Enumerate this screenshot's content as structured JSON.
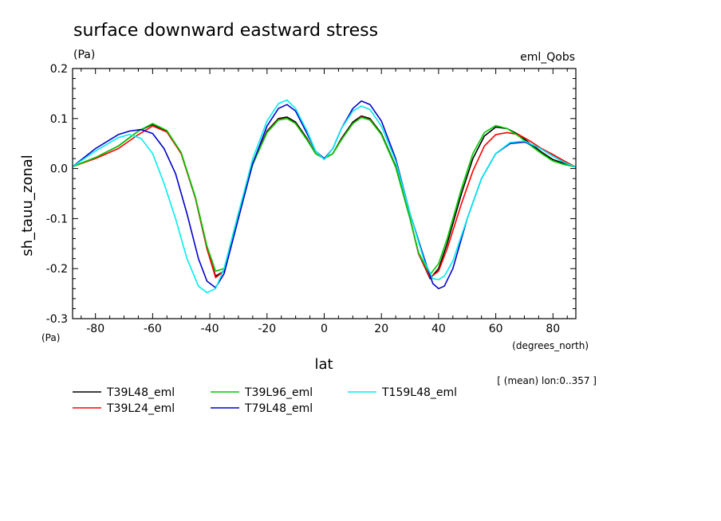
{
  "title": "surface downward eastward stress",
  "units_label": "(Pa)",
  "experiment": "eml_Qobs",
  "info": "[ (mean) lon:0..357 ]",
  "chart_data": {
    "type": "line",
    "xlabel": "lat",
    "ylabel": "sh_tauu_zonal",
    "x_units": "(degrees_north)",
    "y_units": "(Pa)",
    "xlim": [
      -88,
      88
    ],
    "ylim": [
      -0.3,
      0.2
    ],
    "xticks": [
      -80,
      -60,
      -40,
      -20,
      0,
      20,
      40,
      60,
      80
    ],
    "yticks": [
      -0.3,
      -0.2,
      -0.1,
      0.0,
      0.1,
      0.2
    ],
    "xtick_labels": [
      "-80",
      "-60",
      "-40",
      "-20",
      "0",
      "20",
      "40",
      "60",
      "80"
    ],
    "ytick_labels": [
      "-0.3",
      "-0.2",
      "-0.1",
      "0.0",
      "0.1",
      "0.2"
    ],
    "series": [
      {
        "name": "T39L48_eml",
        "color": "#000000",
        "x": [
          -88,
          -80,
          -72,
          -65,
          -60,
          -55,
          -50,
          -45,
          -41,
          -38,
          -35,
          -30,
          -25,
          -20,
          -16,
          -13,
          -10,
          -6,
          -3,
          0,
          3,
          6,
          10,
          13,
          16,
          20,
          25,
          30,
          33,
          37,
          40,
          43,
          48,
          52,
          56,
          60,
          64,
          68,
          72,
          76,
          80,
          84,
          88
        ],
        "y": [
          0.004,
          0.022,
          0.045,
          0.075,
          0.088,
          0.075,
          0.03,
          -0.06,
          -0.16,
          -0.215,
          -0.205,
          -0.09,
          0.01,
          0.075,
          0.1,
          0.103,
          0.093,
          0.06,
          0.03,
          0.02,
          0.03,
          0.06,
          0.093,
          0.105,
          0.1,
          0.07,
          0.005,
          -0.1,
          -0.17,
          -0.22,
          -0.2,
          -0.15,
          -0.05,
          0.02,
          0.065,
          0.083,
          0.08,
          0.068,
          0.05,
          0.033,
          0.018,
          0.01,
          0.003
        ]
      },
      {
        "name": "T39L24_eml",
        "color": "#ff0000",
        "x": [
          -88,
          -80,
          -72,
          -65,
          -60,
          -55,
          -50,
          -45,
          -41,
          -38,
          -35,
          -30,
          -25,
          -20,
          -16,
          -13,
          -10,
          -6,
          -3,
          0,
          3,
          6,
          10,
          13,
          16,
          20,
          25,
          30,
          33,
          37,
          40,
          43,
          48,
          52,
          56,
          60,
          64,
          68,
          72,
          76,
          80,
          84,
          88
        ],
        "y": [
          0.004,
          0.02,
          0.04,
          0.068,
          0.085,
          0.073,
          0.03,
          -0.06,
          -0.16,
          -0.218,
          -0.205,
          -0.09,
          0.01,
          0.073,
          0.098,
          0.1,
          0.09,
          0.058,
          0.03,
          0.02,
          0.03,
          0.058,
          0.09,
          0.103,
          0.098,
          0.068,
          0.003,
          -0.1,
          -0.17,
          -0.218,
          -0.205,
          -0.16,
          -0.07,
          -0.005,
          0.045,
          0.068,
          0.072,
          0.068,
          0.055,
          0.04,
          0.028,
          0.015,
          0.003
        ]
      },
      {
        "name": "T39L96_eml",
        "color": "#00cc00",
        "x": [
          -88,
          -80,
          -72,
          -65,
          -60,
          -55,
          -50,
          -45,
          -41,
          -38,
          -35,
          -30,
          -25,
          -20,
          -16,
          -13,
          -10,
          -6,
          -3,
          0,
          3,
          6,
          10,
          13,
          16,
          20,
          25,
          30,
          33,
          37,
          40,
          43,
          48,
          52,
          56,
          60,
          64,
          68,
          72,
          76,
          80,
          84,
          88
        ],
        "y": [
          0.004,
          0.022,
          0.045,
          0.075,
          0.09,
          0.076,
          0.032,
          -0.058,
          -0.155,
          -0.205,
          -0.2,
          -0.09,
          0.008,
          0.072,
          0.097,
          0.1,
          0.09,
          0.057,
          0.03,
          0.02,
          0.03,
          0.057,
          0.09,
          0.102,
          0.097,
          0.068,
          0.003,
          -0.1,
          -0.168,
          -0.212,
          -0.19,
          -0.14,
          -0.04,
          0.03,
          0.072,
          0.086,
          0.08,
          0.065,
          0.047,
          0.03,
          0.015,
          0.008,
          0.003
        ]
      },
      {
        "name": "T79L48_eml",
        "color": "#0000cc",
        "x": [
          -88,
          -80,
          -72,
          -68,
          -64,
          -60,
          -56,
          -52,
          -48,
          -44,
          -41,
          -38,
          -35,
          -30,
          -25,
          -20,
          -16,
          -13,
          -10,
          -6,
          -3,
          0,
          3,
          6,
          10,
          13,
          16,
          20,
          25,
          30,
          35,
          38,
          40,
          42,
          45,
          50,
          55,
          60,
          65,
          70,
          75,
          80,
          84,
          88
        ],
        "y": [
          0.004,
          0.04,
          0.068,
          0.075,
          0.078,
          0.07,
          0.04,
          -0.01,
          -0.09,
          -0.18,
          -0.225,
          -0.238,
          -0.21,
          -0.1,
          0.01,
          0.085,
          0.12,
          0.128,
          0.115,
          0.07,
          0.035,
          0.02,
          0.04,
          0.08,
          0.12,
          0.135,
          0.128,
          0.095,
          0.02,
          -0.09,
          -0.18,
          -0.23,
          -0.24,
          -0.235,
          -0.2,
          -0.1,
          -0.02,
          0.03,
          0.05,
          0.053,
          0.042,
          0.025,
          0.012,
          0.003
        ]
      },
      {
        "name": "T159L48_eml",
        "color": "#00eeee",
        "x": [
          -88,
          -80,
          -72,
          -68,
          -64,
          -60,
          -56,
          -52,
          -48,
          -44,
          -41,
          -38,
          -35,
          -30,
          -25,
          -20,
          -16,
          -13,
          -10,
          -6,
          -3,
          0,
          3,
          6,
          10,
          13,
          16,
          20,
          25,
          30,
          35,
          38,
          40,
          42,
          45,
          50,
          55,
          60,
          65,
          70,
          75,
          80,
          84,
          88
        ],
        "y": [
          0.004,
          0.035,
          0.062,
          0.068,
          0.06,
          0.03,
          -0.03,
          -0.1,
          -0.18,
          -0.235,
          -0.248,
          -0.24,
          -0.2,
          -0.09,
          0.02,
          0.095,
          0.13,
          0.137,
          0.12,
          0.075,
          0.035,
          0.018,
          0.04,
          0.08,
          0.115,
          0.125,
          0.118,
          0.085,
          0.015,
          -0.09,
          -0.185,
          -0.22,
          -0.222,
          -0.215,
          -0.185,
          -0.1,
          -0.02,
          0.03,
          0.052,
          0.055,
          0.042,
          0.025,
          0.012,
          0.003
        ]
      }
    ]
  }
}
